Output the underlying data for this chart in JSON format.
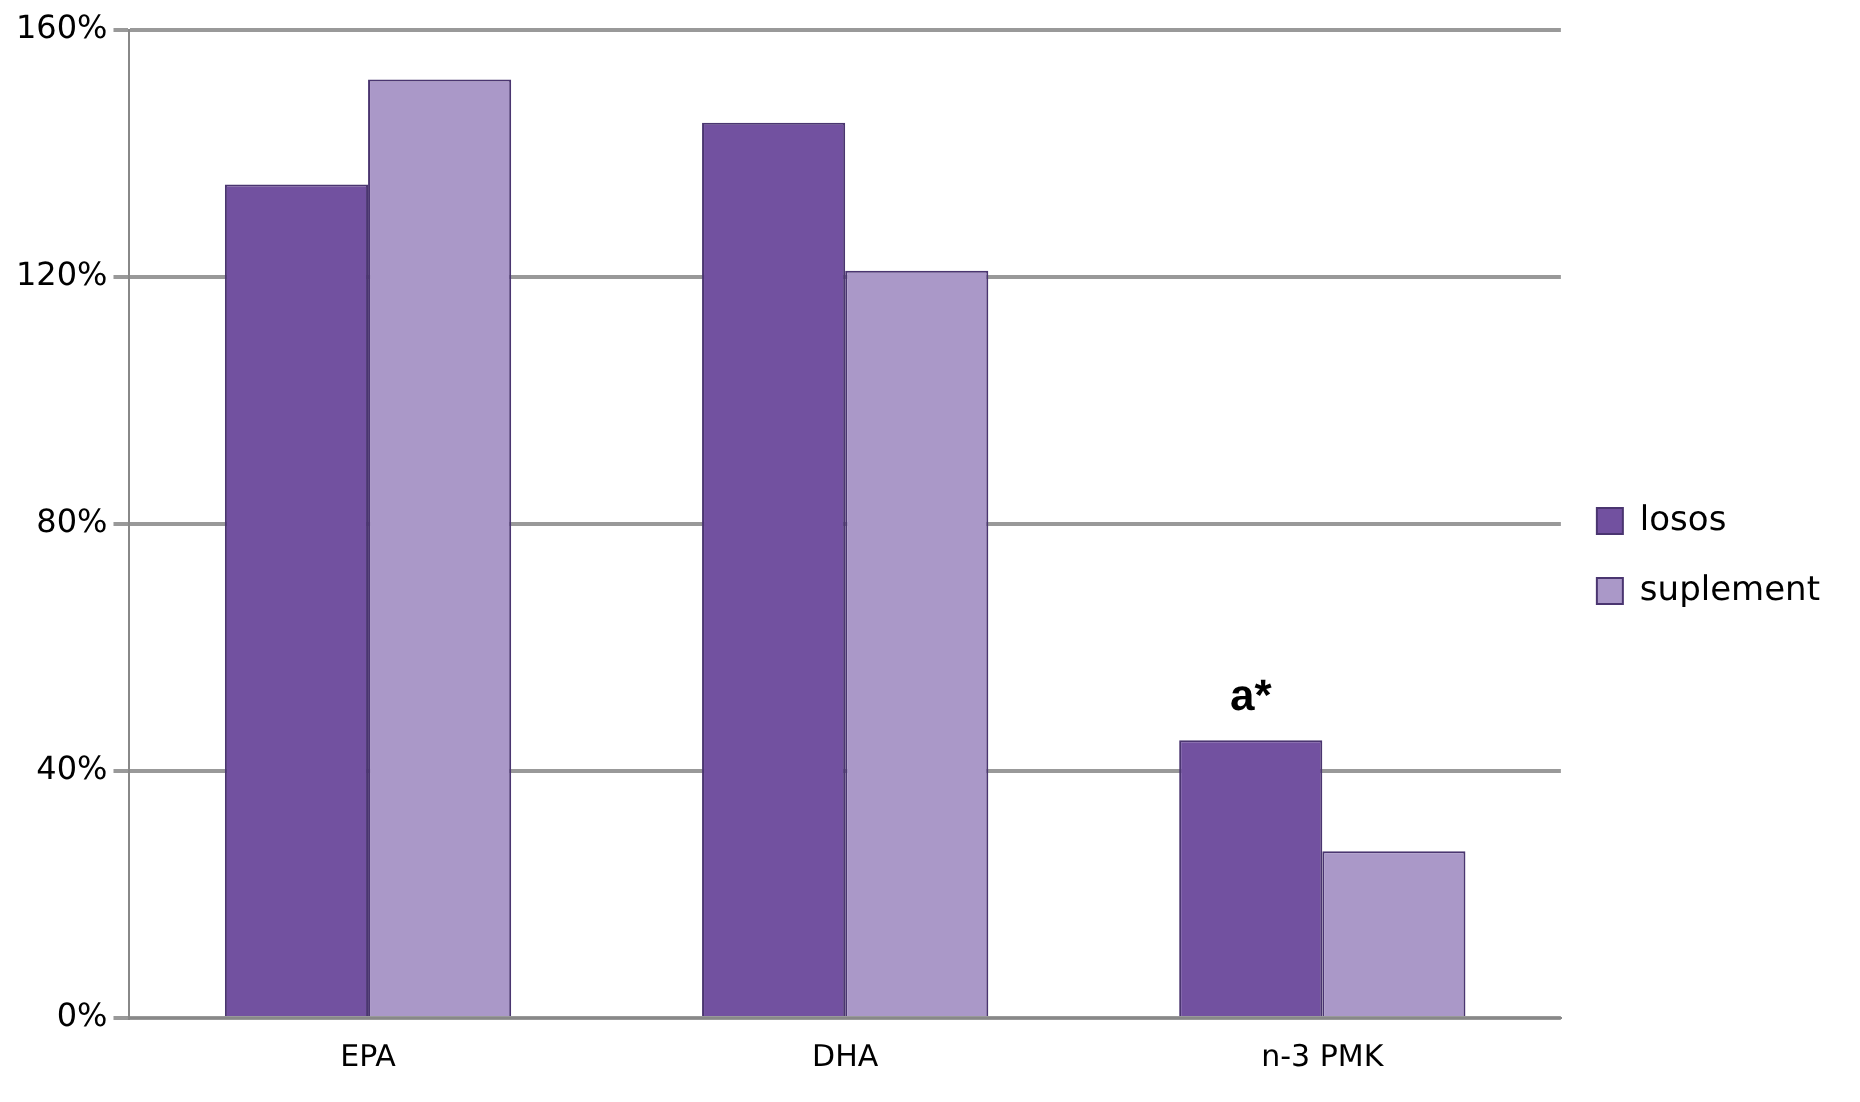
{
  "chart_data": {
    "type": "bar",
    "categories": [
      "EPA",
      "DHA",
      "n-3 PMK"
    ],
    "series": [
      {
        "name": "losos",
        "color": "#7251a0",
        "values": [
          135,
          145,
          45
        ]
      },
      {
        "name": "suplement",
        "color": "#aa98c8",
        "values": [
          152,
          121,
          27
        ]
      }
    ],
    "ylim": [
      0,
      160
    ],
    "yticks": [
      {
        "value": 0,
        "label": "0%"
      },
      {
        "value": 40,
        "label": "40%"
      },
      {
        "value": 80,
        "label": "80%"
      },
      {
        "value": 120,
        "label": "120%"
      },
      {
        "value": 160,
        "label": "160%"
      }
    ],
    "grid": "y",
    "legend": "right",
    "annotations": [
      {
        "text": "a*",
        "x": "n-3 PMK",
        "y": 45
      }
    ]
  }
}
